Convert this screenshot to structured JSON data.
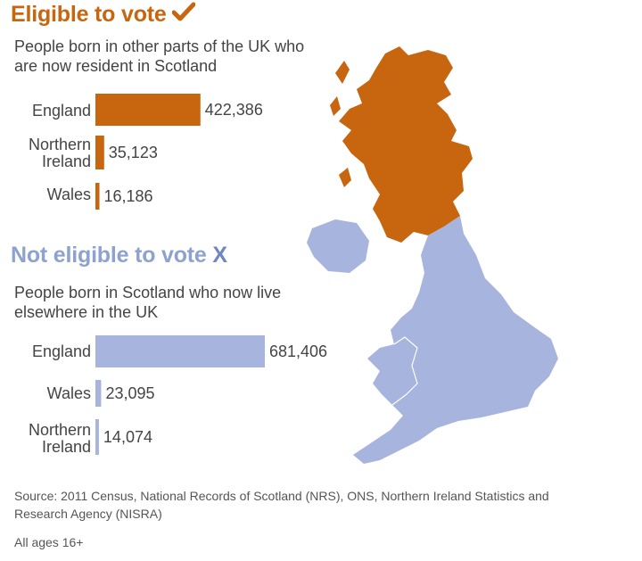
{
  "eligible": {
    "title": "Eligible to vote",
    "mark_icon": "checkmark-icon",
    "subtitle": "People born in other parts of the UK who are now resident in Scotland",
    "color": "#c8650f"
  },
  "not_eligible": {
    "title": "Not eligible to vote",
    "mark": "X",
    "subtitle": "People born in Scotland who now live elsewhere in the UK",
    "color": "#a6b4de"
  },
  "chart_data": [
    {
      "type": "bar",
      "orientation": "horizontal",
      "title": "Eligible to vote",
      "subtitle": "People born in other parts of the UK who are now resident in Scotland",
      "categories": [
        "England",
        "Northern Ireland",
        "Wales"
      ],
      "values": [
        422386,
        35123,
        16186
      ],
      "value_labels": [
        "422,386",
        "35,123",
        "16,186"
      ],
      "color": "#c8650f"
    },
    {
      "type": "bar",
      "orientation": "horizontal",
      "title": "Not eligible to vote",
      "subtitle": "People born in Scotland who now live elsewhere in the UK",
      "categories": [
        "England",
        "Wales",
        "Northern Ireland"
      ],
      "values": [
        681406,
        23095,
        14074
      ],
      "value_labels": [
        "681,406",
        "23,095",
        "14,074"
      ],
      "color": "#a6b4de"
    }
  ],
  "category_text": {
    "england": "England",
    "northern": "Northern",
    "ireland": "Ireland",
    "wales": "Wales"
  },
  "map": {
    "scotland_color": "#c8650f",
    "rest_color": "#a6b4de"
  },
  "footer": {
    "source": "Source: 2011 Census, National Records of Scotland (NRS), ONS, Northern Ireland Statistics and Research Agency (NISRA)",
    "note": "All ages 16+"
  }
}
